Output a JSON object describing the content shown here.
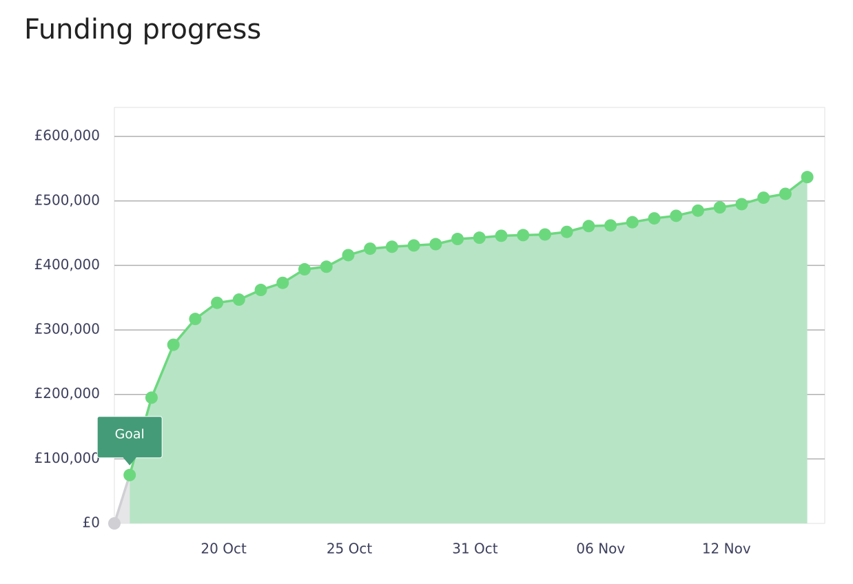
{
  "chart_data": {
    "type": "area",
    "title": "Funding progress",
    "ylim": [
      0,
      645000
    ],
    "yticks": [
      {
        "value": 0,
        "label": "£0"
      },
      {
        "value": 100000,
        "label": "£100,000"
      },
      {
        "value": 200000,
        "label": "£200,000"
      },
      {
        "value": 300000,
        "label": "£300,000"
      },
      {
        "value": 400000,
        "label": "£400,000"
      },
      {
        "value": 500000,
        "label": "£500,000"
      },
      {
        "value": 600000,
        "label": "£600,000"
      }
    ],
    "xlim": [
      0,
      32.5
    ],
    "xticks": [
      {
        "value": 5,
        "label": "20 Oct"
      },
      {
        "value": 10.75,
        "label": "25 Oct"
      },
      {
        "value": 16.5,
        "label": "31 Oct"
      },
      {
        "value": 22.25,
        "label": "06 Nov"
      },
      {
        "value": 28,
        "label": "12 Nov"
      }
    ],
    "grid": true,
    "series": [
      {
        "color": "#cfcfd4",
        "fill": "#e6e6e8",
        "x": [
          0,
          0.7
        ],
        "values": [
          0,
          75000
        ]
      },
      {
        "color": "#6cd87e",
        "fill": "#b8e4c6",
        "x": [
          0.7,
          1.7,
          2.7,
          3.7,
          4.7,
          5.7,
          6.7,
          7.7,
          8.7,
          9.7,
          10.7,
          11.7,
          12.7,
          13.7,
          14.7,
          15.7,
          16.7,
          17.7,
          18.7,
          19.7,
          20.7,
          21.7,
          22.7,
          23.7,
          24.7,
          25.7,
          26.7,
          27.7,
          28.7,
          29.7,
          30.7,
          31.7
        ],
        "values": [
          75000,
          195000,
          277000,
          317000,
          342000,
          347000,
          362000,
          373000,
          394000,
          398000,
          416000,
          426000,
          429000,
          431000,
          433000,
          441000,
          443000,
          446000,
          447000,
          448000,
          452000,
          461000,
          462000,
          467000,
          473000,
          477000,
          485000,
          490000,
          495000,
          505000,
          511000,
          537000
        ]
      }
    ],
    "annotations": [
      {
        "text": "Goal",
        "x": 0.7,
        "y": 75000
      }
    ]
  }
}
